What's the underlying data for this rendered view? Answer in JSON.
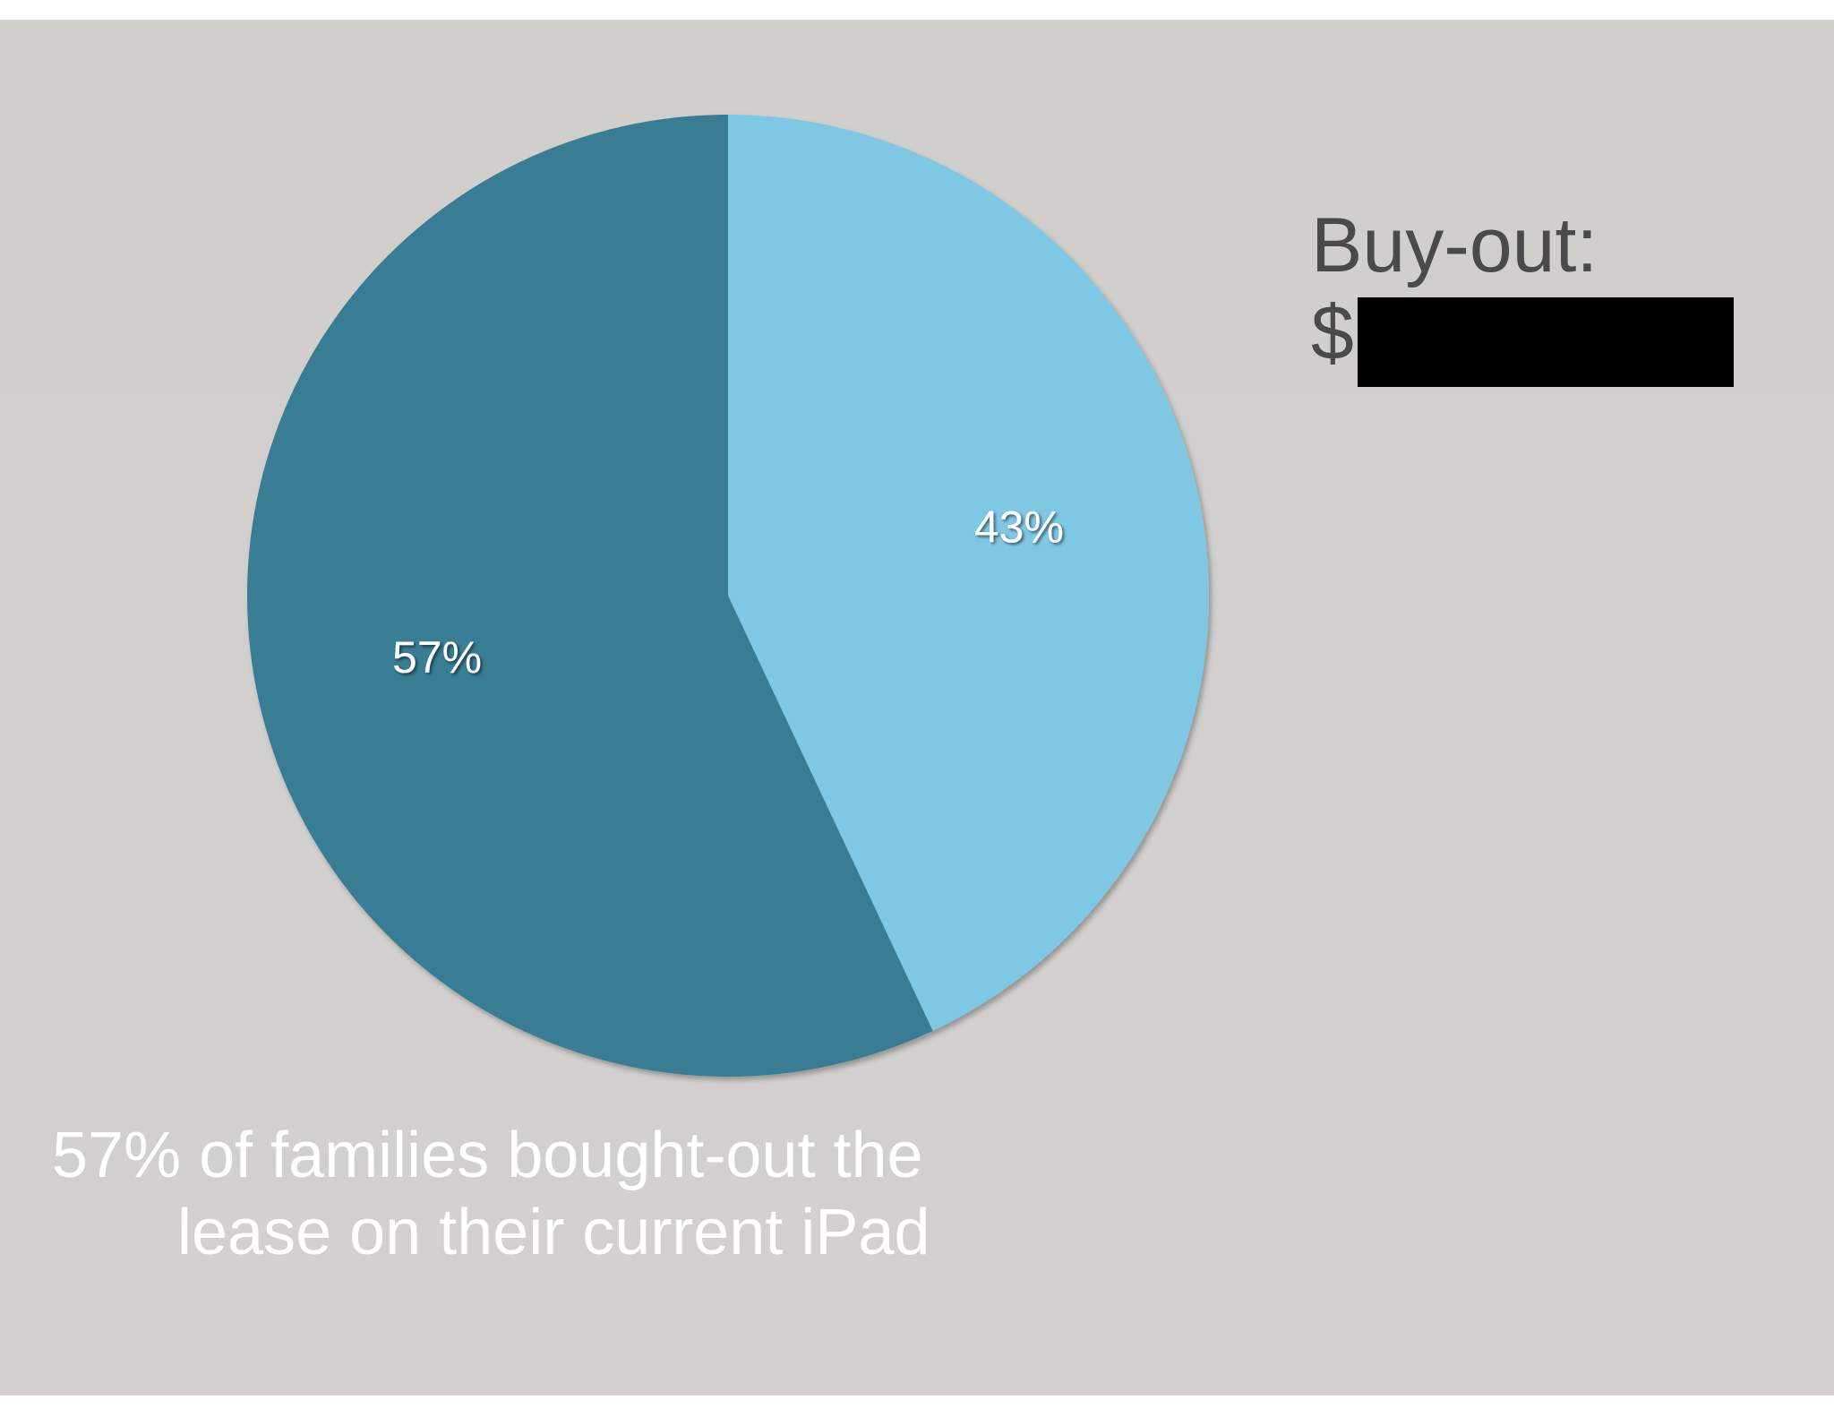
{
  "chart_data": {
    "type": "pie",
    "slices": [
      {
        "label": "43%",
        "value": 43,
        "color": "#7fc8e3"
      },
      {
        "label": "57%",
        "value": 57,
        "color": "#377d94"
      }
    ],
    "start_angle_deg": 0,
    "direction": "clockwise"
  },
  "annotation": {
    "title": "Buy-out:",
    "amount_prefix": "$"
  },
  "caption": {
    "text": "57% of families bought-out the lease on their current iPad"
  },
  "colors": {
    "background": "#d1cfcd",
    "redaction": "#000000",
    "label_text": "#ffffff",
    "annotation_text": "#4a4a4a"
  }
}
